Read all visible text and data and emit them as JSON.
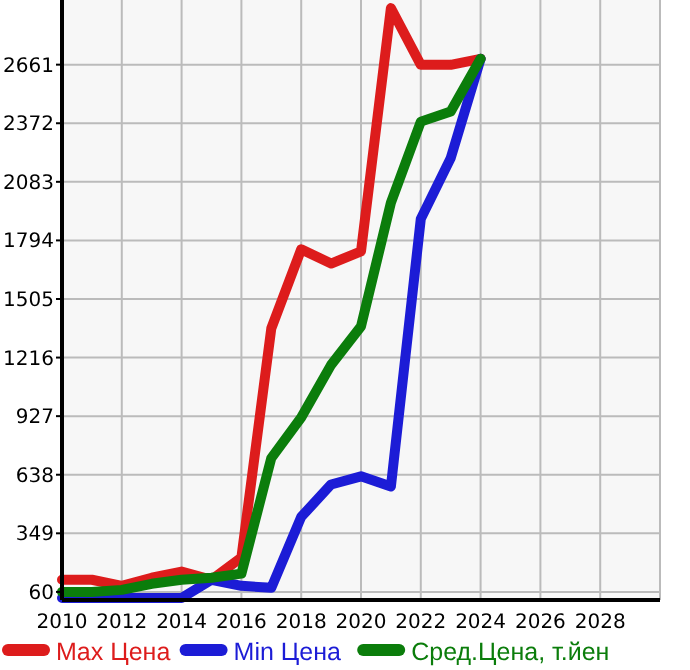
{
  "chart_data": {
    "type": "line",
    "x": [
      2010,
      2011,
      2012,
      2013,
      2014,
      2015,
      2016,
      2017,
      2018,
      2019,
      2020,
      2021,
      2022,
      2023,
      2024
    ],
    "series": [
      {
        "name": "Max Цена",
        "color": "#dd1c1c",
        "values": [
          120,
          120,
          90,
          130,
          160,
          120,
          230,
          1360,
          1750,
          1680,
          1740,
          2940,
          2660,
          2660,
          2690
        ]
      },
      {
        "name": "Min Цена",
        "color": "#1c1cd6",
        "values": [
          30,
          30,
          30,
          30,
          30,
          120,
          90,
          80,
          430,
          590,
          630,
          580,
          1900,
          2200,
          2690
        ]
      },
      {
        "name": "Сред.Цена, т.йен",
        "color": "#0b7d0b",
        "values": [
          60,
          60,
          70,
          100,
          120,
          130,
          150,
          720,
          920,
          1180,
          1370,
          1980,
          2380,
          2430,
          2690
        ]
      }
    ],
    "xlim": [
      2010,
      2030
    ],
    "xticks": [
      2010,
      2012,
      2014,
      2016,
      2018,
      2020,
      2022,
      2024,
      2026,
      2028
    ],
    "ylim": [
      20,
      2980
    ],
    "yticks": [
      60,
      349,
      638,
      927,
      1216,
      1505,
      1794,
      2083,
      2372,
      2661
    ],
    "grid": true,
    "legend": "bottom",
    "marker": "none",
    "line_style": "solid"
  }
}
